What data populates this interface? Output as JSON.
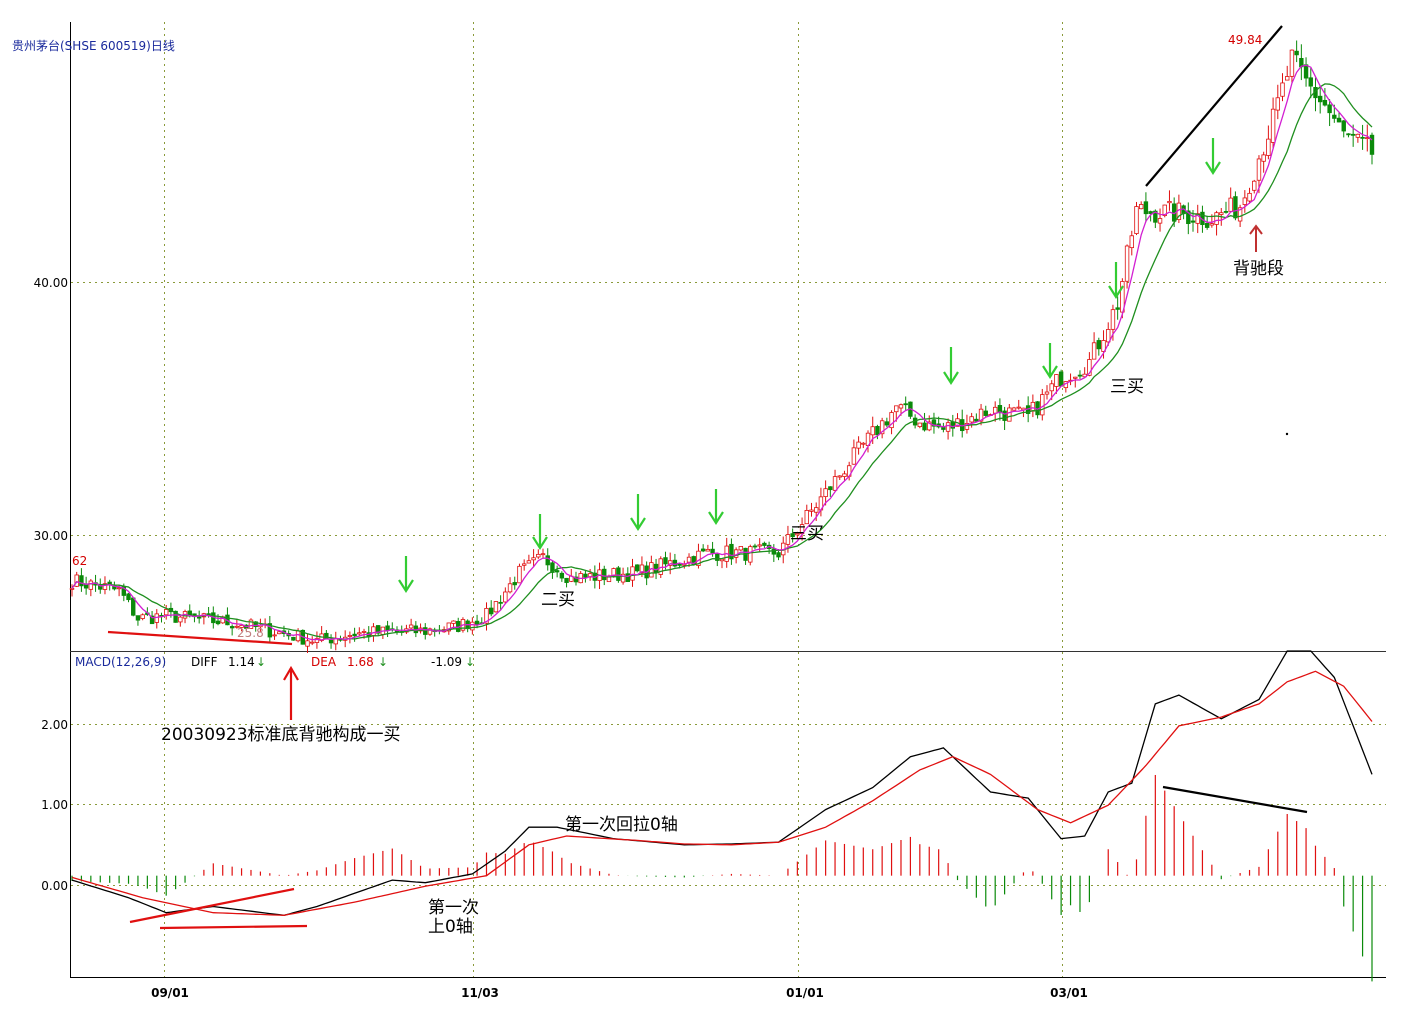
{
  "chart_data": [
    {
      "type": "candlestick",
      "title": "贵州茅台(SHSE 600519)日线",
      "x_ticks": [
        "09/01",
        "11/03",
        "01/01",
        "03/01"
      ],
      "y_ticks": [
        "40.00",
        "30.00"
      ],
      "ylim": [
        25.5,
        50.5
      ],
      "value_labels": {
        "start": "62",
        "low": "25.8",
        "high": "49.84"
      },
      "anchors": [
        {
          "x": 0,
          "y": 28.3
        },
        {
          "x": 10,
          "y": 27.9
        },
        {
          "x": 14,
          "y": 26.8
        },
        {
          "x": 20,
          "y": 26.9
        },
        {
          "x": 35,
          "y": 26.6
        },
        {
          "x": 52,
          "y": 25.9
        },
        {
          "x": 60,
          "y": 26.2
        },
        {
          "x": 75,
          "y": 26.3
        },
        {
          "x": 82,
          "y": 26.5
        },
        {
          "x": 88,
          "y": 26.9
        },
        {
          "x": 95,
          "y": 28.6
        },
        {
          "x": 100,
          "y": 29.2
        },
        {
          "x": 106,
          "y": 28.4
        },
        {
          "x": 120,
          "y": 28.6
        },
        {
          "x": 135,
          "y": 29.4
        },
        {
          "x": 150,
          "y": 29.4
        },
        {
          "x": 158,
          "y": 31.3
        },
        {
          "x": 165,
          "y": 33.0
        },
        {
          "x": 175,
          "y": 35.2
        },
        {
          "x": 180,
          "y": 34.6
        },
        {
          "x": 185,
          "y": 34.3
        },
        {
          "x": 195,
          "y": 35.1
        },
        {
          "x": 203,
          "y": 34.8
        },
        {
          "x": 210,
          "y": 36.4
        },
        {
          "x": 216,
          "y": 37.0
        },
        {
          "x": 222,
          "y": 39.3
        },
        {
          "x": 226,
          "y": 43.0
        },
        {
          "x": 235,
          "y": 42.9
        },
        {
          "x": 242,
          "y": 42.7
        },
        {
          "x": 248,
          "y": 43.2
        },
        {
          "x": 255,
          "y": 46.6
        },
        {
          "x": 259,
          "y": 49.0
        },
        {
          "x": 262,
          "y": 48.1
        },
        {
          "x": 266,
          "y": 47.2
        },
        {
          "x": 270,
          "y": 46.0
        },
        {
          "x": 276,
          "y": 45.3
        }
      ],
      "annotations": [
        "二买",
        "三买",
        "三买",
        "背驰段"
      ]
    },
    {
      "type": "macd",
      "label": "MACD(12,26,9)",
      "diff_label": "DIFF",
      "diff_value": "1.14",
      "dea_label": "DEA",
      "dea_value": "1.68",
      "macd_value": "-1.09",
      "y_ticks": [
        "2.00",
        "1.00",
        "0.00"
      ],
      "ylim": [
        -1.15,
        2.55
      ],
      "diff_anchors": [
        {
          "x": 0,
          "y": -0.05
        },
        {
          "x": 12,
          "y": -0.25
        },
        {
          "x": 20,
          "y": -0.42
        },
        {
          "x": 30,
          "y": -0.35
        },
        {
          "x": 45,
          "y": -0.45
        },
        {
          "x": 52,
          "y": -0.35
        },
        {
          "x": 60,
          "y": -0.2
        },
        {
          "x": 68,
          "y": -0.05
        },
        {
          "x": 75,
          "y": -0.08
        },
        {
          "x": 85,
          "y": 0.02
        },
        {
          "x": 92,
          "y": 0.28
        },
        {
          "x": 97,
          "y": 0.55
        },
        {
          "x": 103,
          "y": 0.55
        },
        {
          "x": 115,
          "y": 0.42
        },
        {
          "x": 130,
          "y": 0.35
        },
        {
          "x": 140,
          "y": 0.36
        },
        {
          "x": 150,
          "y": 0.38
        },
        {
          "x": 160,
          "y": 0.75
        },
        {
          "x": 170,
          "y": 1.0
        },
        {
          "x": 178,
          "y": 1.35
        },
        {
          "x": 185,
          "y": 1.45
        },
        {
          "x": 195,
          "y": 0.95
        },
        {
          "x": 203,
          "y": 0.88
        },
        {
          "x": 210,
          "y": 0.42
        },
        {
          "x": 215,
          "y": 0.45
        },
        {
          "x": 220,
          "y": 0.95
        },
        {
          "x": 225,
          "y": 1.05
        },
        {
          "x": 230,
          "y": 1.95
        },
        {
          "x": 235,
          "y": 2.05
        },
        {
          "x": 244,
          "y": 1.78
        },
        {
          "x": 252,
          "y": 2.0
        },
        {
          "x": 258,
          "y": 2.55
        },
        {
          "x": 263,
          "y": 2.55
        },
        {
          "x": 268,
          "y": 2.25
        },
        {
          "x": 276,
          "y": 1.15
        }
      ],
      "dea_anchors": [
        {
          "x": 0,
          "y": -0.02
        },
        {
          "x": 15,
          "y": -0.25
        },
        {
          "x": 30,
          "y": -0.42
        },
        {
          "x": 45,
          "y": -0.45
        },
        {
          "x": 60,
          "y": -0.3
        },
        {
          "x": 75,
          "y": -0.12
        },
        {
          "x": 88,
          "y": 0.0
        },
        {
          "x": 97,
          "y": 0.35
        },
        {
          "x": 105,
          "y": 0.45
        },
        {
          "x": 120,
          "y": 0.4
        },
        {
          "x": 130,
          "y": 0.36
        },
        {
          "x": 140,
          "y": 0.35
        },
        {
          "x": 150,
          "y": 0.38
        },
        {
          "x": 160,
          "y": 0.55
        },
        {
          "x": 170,
          "y": 0.85
        },
        {
          "x": 180,
          "y": 1.2
        },
        {
          "x": 187,
          "y": 1.35
        },
        {
          "x": 195,
          "y": 1.15
        },
        {
          "x": 205,
          "y": 0.75
        },
        {
          "x": 212,
          "y": 0.6
        },
        {
          "x": 220,
          "y": 0.8
        },
        {
          "x": 228,
          "y": 1.25
        },
        {
          "x": 235,
          "y": 1.7
        },
        {
          "x": 244,
          "y": 1.8
        },
        {
          "x": 252,
          "y": 1.95
        },
        {
          "x": 258,
          "y": 2.2
        },
        {
          "x": 264,
          "y": 2.32
        },
        {
          "x": 270,
          "y": 2.15
        },
        {
          "x": 276,
          "y": 1.75
        }
      ],
      "annotations": [
        "20030923标准底背驰构成一买",
        "第一次回拉0轴",
        "第一次",
        "上0轴"
      ]
    }
  ]
}
